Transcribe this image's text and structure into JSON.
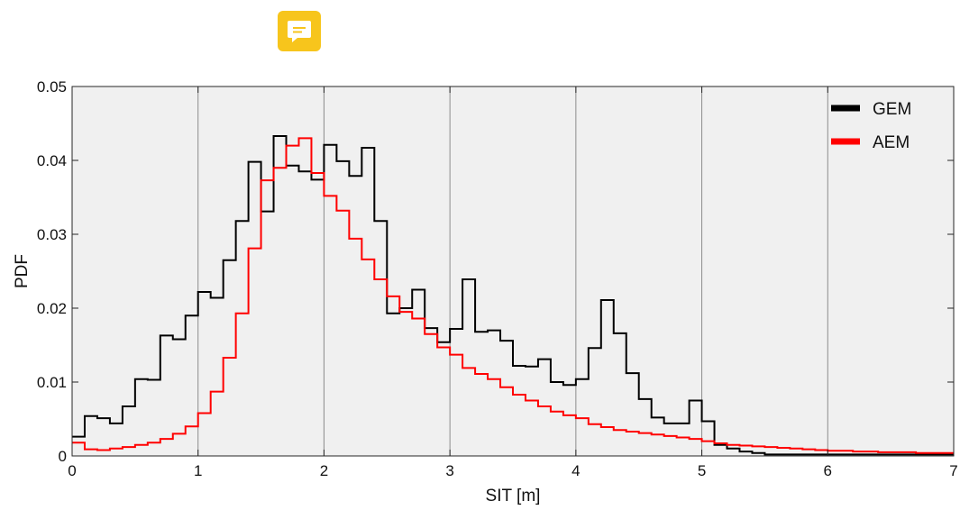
{
  "comment_icon": {
    "icon": "comment-icon",
    "color": "#f7c51c"
  },
  "chart_data": {
    "type": "line",
    "style": "stairs",
    "xlabel": "SIT [m]",
    "ylabel": "PDF",
    "xlim": [
      0,
      7
    ],
    "ylim": [
      0,
      0.05
    ],
    "xticks": [
      "0",
      "1",
      "2",
      "3",
      "4",
      "5",
      "6",
      "7"
    ],
    "yticks": [
      "0",
      "0.01",
      "0.02",
      "0.03",
      "0.04",
      "0.05"
    ],
    "grid": "vertical",
    "legend_position": "top-right",
    "bin_width": 0.1,
    "series": [
      {
        "name": "GEM",
        "color": "#000000",
        "values": [
          0.0026,
          0.0054,
          0.0051,
          0.0044,
          0.0067,
          0.0104,
          0.0103,
          0.0163,
          0.0158,
          0.019,
          0.0222,
          0.0214,
          0.0265,
          0.0318,
          0.0398,
          0.0331,
          0.0433,
          0.0393,
          0.0385,
          0.0374,
          0.0421,
          0.0399,
          0.0379,
          0.0417,
          0.0318,
          0.0193,
          0.02,
          0.0225,
          0.0173,
          0.0154,
          0.0172,
          0.0239,
          0.0168,
          0.017,
          0.0156,
          0.0122,
          0.0121,
          0.0131,
          0.01,
          0.0096,
          0.0104,
          0.0146,
          0.0211,
          0.0166,
          0.0112,
          0.0077,
          0.0052,
          0.0044,
          0.0044,
          0.0075,
          0.0047,
          0.0015,
          0.001,
          0.0006,
          0.0004,
          0.0002,
          0.0002,
          0.0002,
          0.0002,
          0.0002,
          0.0002,
          0.0002,
          0.0002,
          0.0002,
          0.0002,
          0.0002,
          0.0002,
          0.0002,
          0.0002,
          0.0002
        ]
      },
      {
        "name": "AEM",
        "color": "#ff0000",
        "values": [
          0.0018,
          0.0009,
          0.0008,
          0.001,
          0.0012,
          0.0015,
          0.0018,
          0.0023,
          0.003,
          0.004,
          0.0058,
          0.0087,
          0.0133,
          0.0193,
          0.0281,
          0.0373,
          0.039,
          0.042,
          0.043,
          0.0383,
          0.0352,
          0.0332,
          0.0294,
          0.0266,
          0.0239,
          0.0216,
          0.0195,
          0.0186,
          0.0165,
          0.0147,
          0.0137,
          0.0119,
          0.0111,
          0.0104,
          0.0093,
          0.0083,
          0.0075,
          0.0067,
          0.006,
          0.0055,
          0.0051,
          0.0043,
          0.0039,
          0.0035,
          0.0033,
          0.0031,
          0.0029,
          0.0027,
          0.0025,
          0.0023,
          0.002,
          0.0017,
          0.0015,
          0.0014,
          0.0013,
          0.0012,
          0.0011,
          0.001,
          0.0009,
          0.0008,
          0.0007,
          0.0007,
          0.0006,
          0.0006,
          0.0005,
          0.0005,
          0.0005,
          0.0004,
          0.0004,
          0.0004
        ]
      }
    ]
  }
}
